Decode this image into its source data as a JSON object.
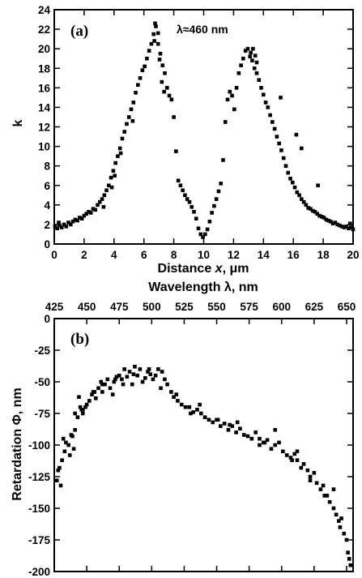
{
  "chart_data": [
    {
      "type": "scatter",
      "panel_label": "(a)",
      "annotation": "λ≈460 nm",
      "xlabel_text": "Distance ",
      "xlabel_var": "x",
      "xlabel_unit": ", μm",
      "ylabel": "k",
      "xlim": [
        0,
        20
      ],
      "ylim": [
        0,
        24
      ],
      "xticks": [
        0,
        2,
        4,
        6,
        8,
        10,
        12,
        14,
        16,
        18,
        20
      ],
      "yticks": [
        0,
        2,
        4,
        6,
        8,
        10,
        12,
        14,
        16,
        18,
        20,
        22,
        24
      ],
      "marker_color": "#000000",
      "x": [
        0.05,
        0.2,
        0.35,
        0.5,
        0.65,
        0.8,
        0.95,
        1.1,
        1.25,
        1.4,
        1.55,
        1.7,
        1.85,
        2.0,
        2.15,
        2.3,
        2.45,
        2.6,
        2.75,
        2.9,
        3.05,
        3.2,
        3.35,
        3.5,
        3.65,
        3.8,
        3.95,
        4.1,
        4.25,
        4.4,
        4.55,
        4.7,
        4.85,
        5.0,
        5.15,
        5.3,
        5.45,
        5.6,
        5.75,
        5.9,
        6.05,
        6.2,
        6.35,
        6.5,
        6.65,
        6.8,
        6.95,
        7.1,
        7.25,
        7.4,
        7.55,
        7.7,
        7.85,
        8.0,
        8.15,
        8.3,
        8.45,
        8.6,
        8.75,
        8.9,
        9.05,
        9.2,
        9.35,
        9.5,
        9.65,
        9.8,
        9.95,
        10.1,
        10.25,
        10.4,
        10.55,
        10.7,
        10.85,
        11.0,
        11.15,
        11.3,
        11.45,
        11.6,
        11.75,
        11.9,
        12.05,
        12.2,
        12.35,
        12.5,
        12.65,
        12.8,
        12.95,
        13.1,
        13.25,
        13.4,
        13.55,
        13.7,
        13.85,
        14.0,
        14.15,
        14.3,
        14.45,
        14.6,
        14.75,
        14.9,
        15.05,
        15.2,
        15.35,
        15.5,
        15.65,
        15.8,
        15.95,
        16.1,
        16.25,
        16.4,
        16.55,
        16.7,
        16.85,
        17.0,
        17.15,
        17.3,
        17.45,
        17.6,
        17.75,
        17.9,
        18.05,
        18.2,
        18.35,
        18.5,
        18.65,
        18.8,
        18.95,
        19.1,
        19.25,
        19.4,
        19.55,
        19.7,
        19.85,
        20.0,
        6.7,
        6.75,
        6.95,
        7.05,
        7.2,
        7.35,
        13.15,
        13.3,
        13.45,
        13.55,
        3.3,
        4.45,
        5.25,
        15.15,
        16.2,
        3.85,
        4.05,
        16.55,
        17.65,
        0.3,
        19.8
      ],
      "y": [
        1.8,
        1.6,
        1.9,
        1.7,
        2.0,
        1.8,
        2.2,
        2.0,
        2.3,
        2.5,
        2.4,
        2.7,
        2.6,
        2.9,
        3.1,
        3.3,
        3.2,
        3.6,
        3.5,
        4.0,
        4.3,
        4.6,
        5.0,
        5.5,
        6.0,
        6.8,
        7.5,
        8.3,
        9.0,
        9.8,
        10.8,
        11.5,
        12.3,
        13.0,
        13.8,
        14.5,
        15.5,
        16.3,
        17.0,
        17.8,
        18.2,
        19.0,
        19.8,
        20.5,
        21.5,
        22.3,
        20.5,
        19.5,
        18.3,
        17.5,
        16.0,
        15.2,
        14.8,
        13.0,
        9.5,
        6.5,
        6.0,
        5.5,
        5.0,
        4.6,
        4.3,
        3.8,
        3.3,
        2.6,
        1.6,
        1.0,
        0.7,
        1.0,
        1.5,
        2.3,
        3.2,
        3.9,
        4.6,
        5.4,
        6.2,
        8.6,
        12.5,
        14.8,
        15.6,
        15.2,
        13.8,
        16.0,
        17.5,
        18.3,
        19.0,
        19.8,
        20.0,
        19.2,
        18.8,
        18.0,
        17.5,
        16.8,
        16.0,
        15.3,
        14.5,
        14.0,
        13.2,
        12.5,
        11.8,
        11.0,
        10.3,
        9.6,
        8.8,
        8.0,
        7.3,
        6.7,
        6.3,
        5.8,
        5.3,
        5.0,
        4.6,
        4.3,
        4.0,
        3.7,
        3.6,
        3.4,
        3.3,
        3.1,
        2.9,
        2.8,
        2.7,
        2.5,
        2.4,
        2.3,
        2.1,
        2.2,
        2.0,
        1.9,
        1.8,
        1.7,
        1.8,
        1.6,
        1.7,
        1.5,
        20.8,
        22.6,
        21.6,
        18.9,
        16.6,
        15.6,
        19.6,
        20.0,
        19.3,
        18.6,
        3.8,
        9.3,
        12.6,
        15.0,
        11.2,
        5.8,
        7.0,
        9.8,
        6.0,
        2.2,
        2.1
      ]
    },
    {
      "type": "scatter",
      "panel_label": "(b)",
      "xlabel": "Wavelength λ, nm",
      "ylabel": "Retardation Φ, nm",
      "xaxis_position": "top",
      "xlim": [
        425,
        655
      ],
      "ylim": [
        -200,
        0
      ],
      "xticks": [
        425,
        450,
        475,
        500,
        525,
        550,
        575,
        600,
        625,
        650
      ],
      "yticks": [
        0,
        -25,
        -50,
        -75,
        -100,
        -125,
        -150,
        -175,
        -200
      ],
      "marker_color": "#000000",
      "x": [
        427,
        428,
        430,
        431,
        432,
        433,
        434,
        436,
        437,
        438,
        440,
        441,
        443,
        444,
        445,
        446,
        447,
        449,
        450,
        452,
        454,
        455,
        457,
        459,
        461,
        462,
        464,
        466,
        468,
        470,
        471,
        473,
        475,
        477,
        479,
        481,
        483,
        485,
        487,
        489,
        491,
        493,
        495,
        497,
        499,
        501,
        503,
        505,
        507,
        510,
        512,
        515,
        517,
        520,
        523,
        526,
        529,
        532,
        535,
        538,
        541,
        544,
        547,
        550,
        553,
        556,
        559,
        562,
        565,
        568,
        571,
        574,
        577,
        580,
        583,
        586,
        589,
        592,
        595,
        598,
        601,
        604,
        607,
        610,
        612,
        615,
        617,
        620,
        622,
        625,
        627,
        630,
        632,
        635,
        637,
        640,
        642,
        644,
        646,
        648,
        650,
        651,
        652,
        441,
        447,
        456,
        472,
        486,
        498,
        519,
        537,
        551,
        566,
        583,
        595,
        608,
        622,
        633,
        645,
        429,
        439,
        462,
        478,
        508,
        530,
        560,
        587,
        612,
        640,
        653
      ],
      "y": [
        -128,
        -120,
        -132,
        -112,
        -95,
        -105,
        -98,
        -100,
        -108,
        -92,
        -103,
        -75,
        -78,
        -62,
        -70,
        -72,
        -75,
        -70,
        -68,
        -65,
        -60,
        -58,
        -63,
        -55,
        -50,
        -58,
        -52,
        -48,
        -55,
        -60,
        -50,
        -46,
        -45,
        -48,
        -40,
        -46,
        -42,
        -52,
        -38,
        -45,
        -40,
        -50,
        -47,
        -42,
        -44,
        -48,
        -45,
        -40,
        -55,
        -48,
        -52,
        -58,
        -62,
        -65,
        -68,
        -70,
        -70,
        -74,
        -72,
        -75,
        -78,
        -80,
        -82,
        -80,
        -85,
        -83,
        -88,
        -85,
        -90,
        -87,
        -92,
        -93,
        -95,
        -90,
        -100,
        -98,
        -96,
        -103,
        -100,
        -98,
        -105,
        -108,
        -110,
        -107,
        -112,
        -118,
        -115,
        -120,
        -125,
        -122,
        -130,
        -135,
        -132,
        -140,
        -145,
        -150,
        -155,
        -160,
        -158,
        -170,
        -175,
        -185,
        -190,
        -88,
        -72,
        -58,
        -48,
        -44,
        -40,
        -60,
        -68,
        -80,
        -82,
        -95,
        -88,
        -112,
        -128,
        -140,
        -165,
        -118,
        -93,
        -52,
        -52,
        -42,
        -75,
        -84,
        -98,
        -105,
        -135,
        -195
      ]
    }
  ]
}
